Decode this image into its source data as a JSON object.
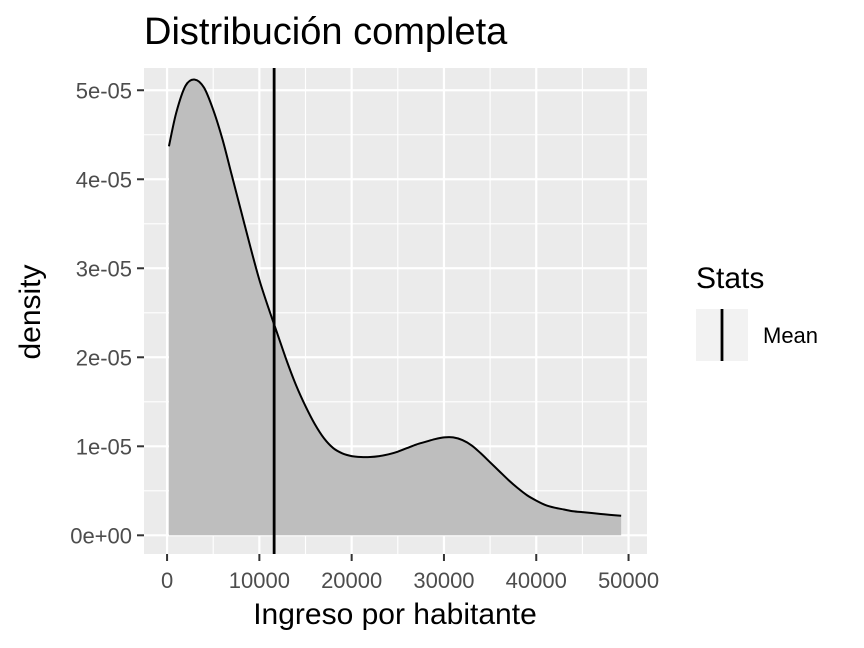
{
  "chart_data": {
    "type": "area",
    "title": "Distribución completa",
    "xlabel": "Ingreso por habitante",
    "ylabel": "density",
    "xlim": [
      -2500,
      52000
    ],
    "ylim": [
      -2.1e-06,
      5.25e-05
    ],
    "x_ticks": [
      0,
      10000,
      20000,
      30000,
      40000,
      50000
    ],
    "x_tick_labels": [
      "0",
      "10000",
      "20000",
      "30000",
      "40000",
      "50000"
    ],
    "y_ticks": [
      0,
      1e-05,
      2e-05,
      3e-05,
      4e-05,
      5e-05
    ],
    "y_tick_labels": [
      "0e+00",
      "1e-05",
      "2e-05",
      "3e-05",
      "4e-05",
      "5e-05"
    ],
    "grid": true,
    "fill_color": "#bebebe",
    "line_color": "#000000",
    "panel_color": "#ebebeb",
    "density": {
      "x": [
        200,
        1000,
        2000,
        3000,
        4000,
        5000,
        6000,
        7000,
        8000,
        9000,
        10000,
        11000,
        12000,
        13000,
        14000,
        15000,
        16000,
        17000,
        18000,
        19000,
        20000,
        21000,
        22000,
        23000,
        24000,
        25000,
        26000,
        27000,
        28000,
        29000,
        30000,
        31000,
        32000,
        33000,
        34000,
        35000,
        36000,
        37000,
        38000,
        39000,
        40000,
        41000,
        42000,
        43000,
        44000,
        45000,
        46000,
        47000,
        48000,
        49200
      ],
      "y": [
        4.37e-05,
        4.75e-05,
        5.05e-05,
        5.12e-05,
        5.03e-05,
        4.78e-05,
        4.45e-05,
        4.05e-05,
        3.65e-05,
        3.25e-05,
        2.87e-05,
        2.55e-05,
        2.25e-05,
        1.95e-05,
        1.68e-05,
        1.45e-05,
        1.25e-05,
        1.09e-05,
        9.8e-06,
        9.2e-06,
        8.9e-06,
        8.8e-06,
        8.8e-06,
        8.9e-06,
        9.1e-06,
        9.4e-06,
        9.8e-06,
        1.02e-05,
        1.05e-05,
        1.08e-05,
        1.1e-05,
        1.1e-05,
        1.07e-05,
        1.01e-05,
        9.2e-06,
        8.2e-06,
        7.2e-06,
        6.2e-06,
        5.3e-06,
        4.5e-06,
        3.9e-06,
        3.4e-06,
        3.1e-06,
        2.9e-06,
        2.7e-06,
        2.6e-06,
        2.5e-06,
        2.4e-06,
        2.3e-06,
        2.2e-06
      ]
    },
    "mean_line": {
      "x": 11600,
      "name": "Mean"
    },
    "legend": {
      "title": "Stats",
      "entries": [
        "Mean"
      ],
      "position": "right"
    }
  }
}
